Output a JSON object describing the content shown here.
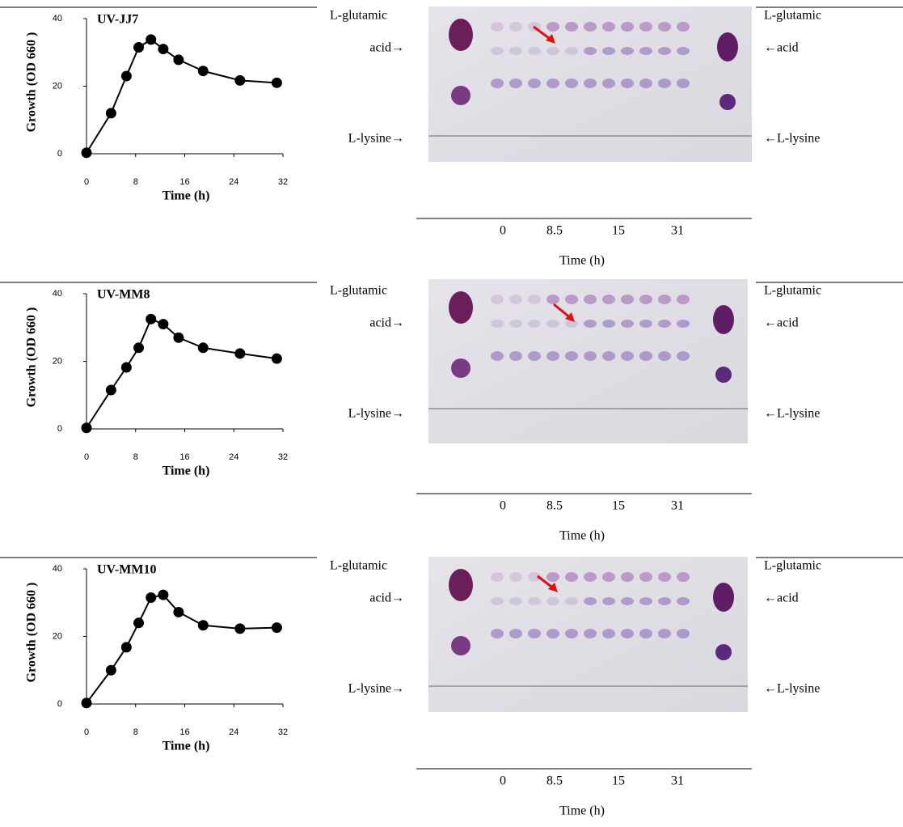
{
  "chart_data": [
    {
      "type": "line",
      "title": "UV-JJ7",
      "xlabel": "Time (h)",
      "ylabel": "Growth (OD 660 )",
      "x": [
        0,
        4,
        6.5,
        8.5,
        10.5,
        12.5,
        15,
        19,
        25,
        31
      ],
      "y": [
        0.3,
        12,
        23,
        31.5,
        33.8,
        31,
        27.8,
        24.5,
        21.7,
        21
      ],
      "xlim": [
        0,
        32
      ],
      "xticks": [
        0,
        8,
        16,
        24,
        32
      ],
      "ylim": [
        0,
        40
      ],
      "yticks": [
        0,
        20,
        40
      ],
      "color": "#000000"
    },
    {
      "type": "line",
      "title": "UV-MM8",
      "xlabel": "Time (h)",
      "ylabel": "Growth (OD 660 )",
      "x": [
        0,
        4,
        6.5,
        8.5,
        10.5,
        12.5,
        15,
        19,
        25,
        31
      ],
      "y": [
        0.3,
        11.5,
        18.2,
        24,
        32.5,
        31,
        27,
        24,
        22.3,
        20.8
      ],
      "xlim": [
        0,
        32
      ],
      "xticks": [
        0,
        8,
        16,
        24,
        32
      ],
      "ylim": [
        0,
        40
      ],
      "yticks": [
        0,
        20,
        40
      ],
      "color": "#000000"
    },
    {
      "type": "line",
      "title": "UV-MM10",
      "xlabel": "Time (h)",
      "ylabel": "Growth (OD 660 )",
      "x": [
        0,
        4,
        6.5,
        8.5,
        10.5,
        12.5,
        15,
        19,
        25,
        31
      ],
      "y": [
        0.3,
        10,
        16.8,
        24,
        31.5,
        32.3,
        27.2,
        23.3,
        22.3,
        22.6
      ],
      "xlim": [
        0,
        32
      ],
      "xticks": [
        0,
        8,
        16,
        24,
        32
      ],
      "ylim": [
        0,
        40
      ],
      "yticks": [
        0,
        20,
        40
      ],
      "color": "#000000"
    }
  ],
  "tlc_panels": [
    {
      "left_top": "L-glutamic",
      "left_acid": "acid→",
      "left_lysine": "L-lysine→",
      "right_top": "L-glutamic",
      "right_acid": "←acid",
      "right_lysine": "←L-lysine",
      "times": [
        "0",
        "8.5",
        "15",
        "31"
      ],
      "time_label": "Time (h)"
    },
    {
      "left_top": "L-glutamic",
      "left_acid": "acid→",
      "left_lysine": "L-lysine→",
      "right_top": "L-glutamic",
      "right_acid": "←acid",
      "right_lysine": "←L-lysine",
      "times": [
        "0",
        "8.5",
        "15",
        "31"
      ],
      "time_label": "Time (h)"
    },
    {
      "left_top": "L-glutamic",
      "left_acid": "acid→",
      "left_lysine": "L-lysine→",
      "right_top": "L-glutamic",
      "right_acid": "←acid",
      "right_lysine": "←L-lysine",
      "times": [
        "0",
        "8.5",
        "15",
        "31"
      ],
      "time_label": "Time (h)"
    }
  ]
}
